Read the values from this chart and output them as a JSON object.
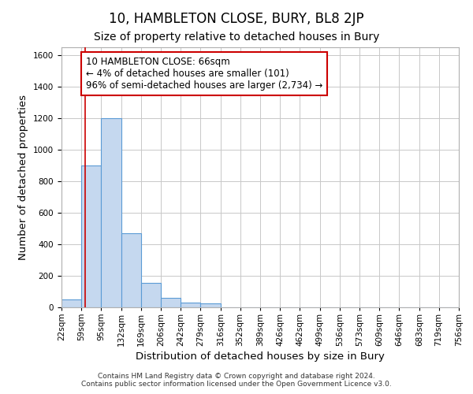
{
  "title": "10, HAMBLETON CLOSE, BURY, BL8 2JP",
  "subtitle": "Size of property relative to detached houses in Bury",
  "xlabel": "Distribution of detached houses by size in Bury",
  "ylabel": "Number of detached properties",
  "footer_line1": "Contains HM Land Registry data © Crown copyright and database right 2024.",
  "footer_line2": "Contains public sector information licensed under the Open Government Licence v3.0.",
  "bar_values": [
    50,
    900,
    1200,
    470,
    155,
    60,
    30,
    25,
    0,
    0,
    0,
    0,
    0,
    0,
    0,
    0,
    0,
    0,
    0,
    0
  ],
  "bin_edges": [
    22,
    59,
    95,
    132,
    169,
    206,
    242,
    279,
    316,
    352,
    389,
    426,
    462,
    499,
    536,
    573,
    609,
    646,
    683,
    719,
    756
  ],
  "tick_labels": [
    "22sqm",
    "59sqm",
    "95sqm",
    "132sqm",
    "169sqm",
    "206sqm",
    "242sqm",
    "279sqm",
    "316sqm",
    "352sqm",
    "389sqm",
    "426sqm",
    "462sqm",
    "499sqm",
    "536sqm",
    "573sqm",
    "609sqm",
    "646sqm",
    "683sqm",
    "719sqm",
    "756sqm"
  ],
  "ylim": [
    0,
    1650
  ],
  "yticks": [
    0,
    200,
    400,
    600,
    800,
    1000,
    1200,
    1400,
    1600
  ],
  "bar_color": "#c5d8ef",
  "bar_edge_color": "#5b9bd5",
  "property_line_x": 66,
  "property_line_color": "#cc0000",
  "annotation_text": "10 HAMBLETON CLOSE: 66sqm\n← 4% of detached houses are smaller (101)\n96% of semi-detached houses are larger (2,734) →",
  "annotation_box_color": "#cc0000",
  "background_color": "#ffffff",
  "grid_color": "#c8c8c8",
  "title_fontsize": 12,
  "subtitle_fontsize": 10,
  "axis_label_fontsize": 9.5,
  "tick_fontsize": 7.5,
  "annotation_fontsize": 8.5,
  "fig_width": 6.0,
  "fig_height": 5.0
}
